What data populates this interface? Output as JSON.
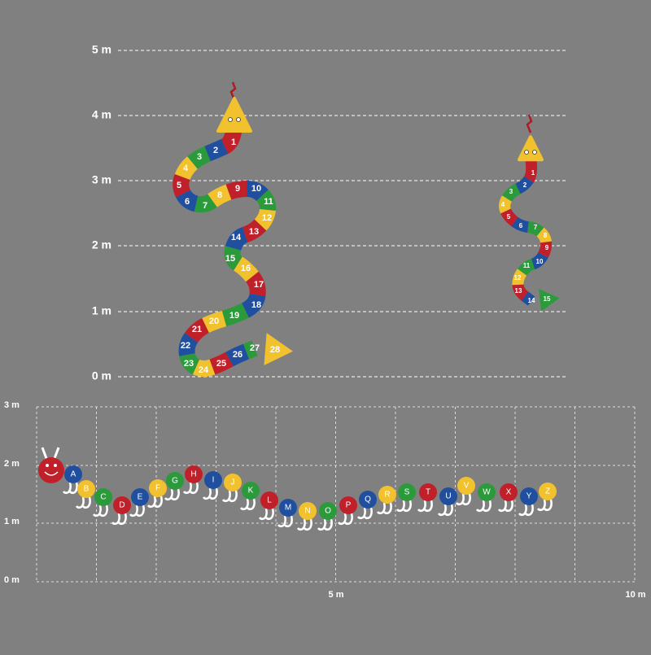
{
  "top_scale": {
    "labels": [
      "5 m",
      "4 m",
      "3 m",
      "2 m",
      "1 m",
      "0 m"
    ]
  },
  "snake_large": {
    "segments": [
      "1",
      "2",
      "3",
      "4",
      "5",
      "6",
      "7",
      "8",
      "9",
      "10",
      "11",
      "12",
      "13",
      "14",
      "15",
      "16",
      "17",
      "18",
      "19",
      "20",
      "21",
      "22",
      "23",
      "24",
      "25",
      "26",
      "27"
    ],
    "tail": "28"
  },
  "snake_small": {
    "segments": [
      "1",
      "2",
      "3",
      "4",
      "5",
      "6",
      "7",
      "8",
      "9",
      "10",
      "11",
      "12",
      "13",
      "14"
    ],
    "tail": "15"
  },
  "caterpillar": {
    "letters": [
      "A",
      "B",
      "C",
      "D",
      "E",
      "F",
      "G",
      "H",
      "I",
      "J",
      "K",
      "L",
      "M",
      "N",
      "O",
      "P",
      "Q",
      "R",
      "S",
      "T",
      "U",
      "V",
      "W",
      "X",
      "Y",
      "Z"
    ]
  },
  "bottom_scale": {
    "y_labels": [
      "3 m",
      "2 m",
      "1 m",
      "0 m"
    ],
    "x_labels": [
      "5 m",
      "10 m"
    ]
  }
}
